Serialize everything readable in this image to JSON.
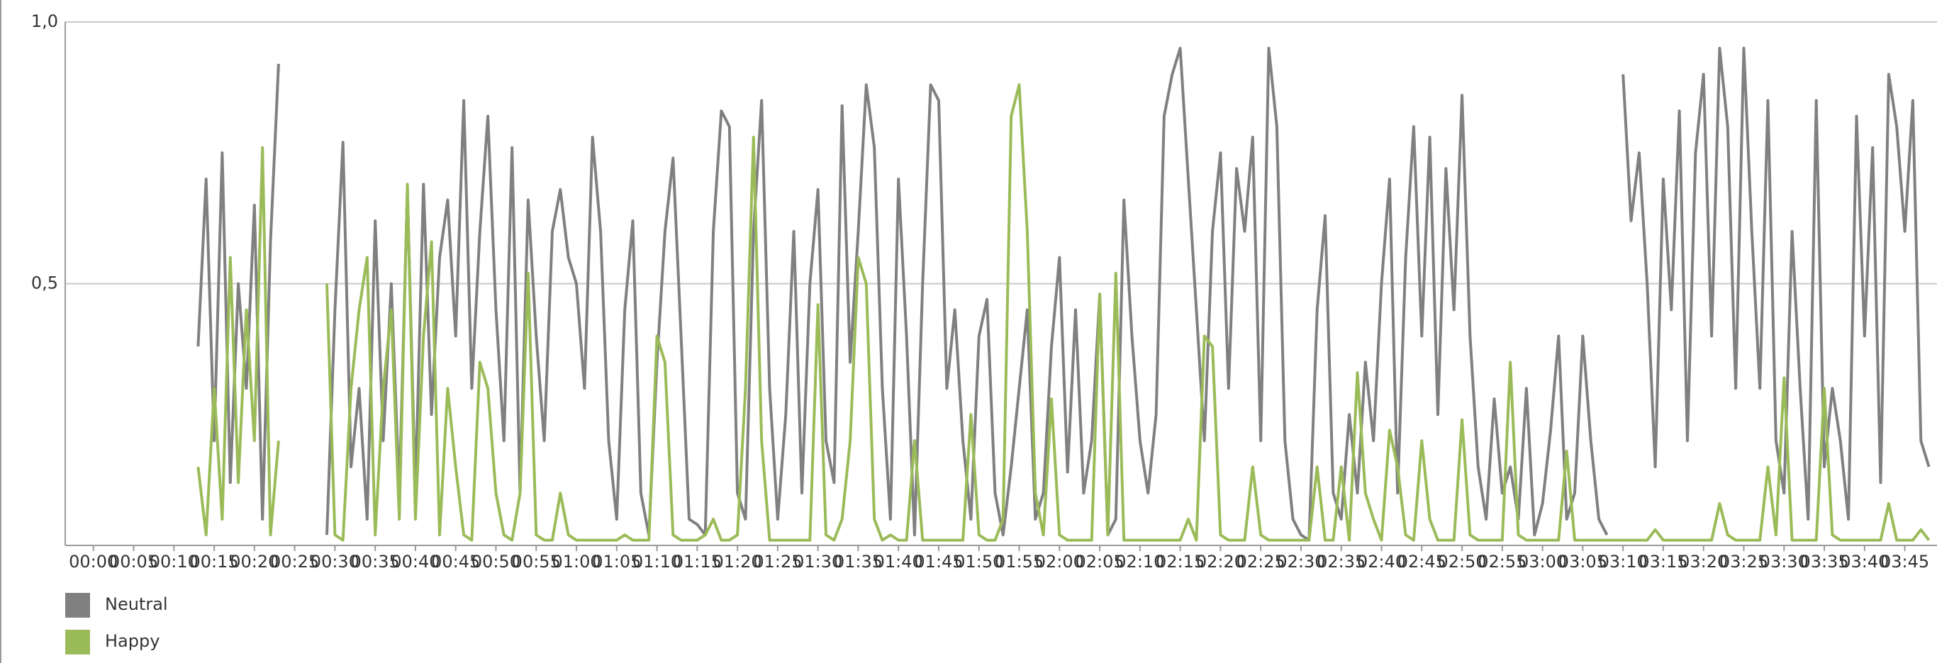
{
  "chart_data": {
    "type": "line",
    "x": [
      0,
      1,
      2,
      3,
      4,
      5,
      6,
      7,
      8,
      9,
      10,
      11,
      12,
      13,
      14,
      15,
      16,
      17,
      18,
      19,
      20,
      21,
      22,
      23,
      24,
      25,
      26,
      27,
      28,
      29,
      30,
      31,
      32,
      33,
      34,
      35,
      36,
      37,
      38,
      39,
      40,
      41,
      42,
      43,
      44,
      45,
      46,
      47,
      48,
      49,
      50,
      51,
      52,
      53,
      54,
      55,
      56,
      57,
      58,
      59,
      60,
      61,
      62,
      63,
      64,
      65,
      66,
      67,
      68,
      69,
      70,
      71,
      72,
      73,
      74,
      75,
      76,
      77,
      78,
      79,
      80,
      81,
      82,
      83,
      84,
      85,
      86,
      87,
      88,
      89,
      90,
      91,
      92,
      93,
      94,
      95,
      96,
      97,
      98,
      99,
      100,
      101,
      102,
      103,
      104,
      105,
      106,
      107,
      108,
      109,
      110,
      111,
      112,
      113,
      114,
      115,
      116,
      117,
      118,
      119,
      120,
      121,
      122,
      123,
      124,
      125,
      126,
      127,
      128,
      129,
      130,
      131,
      132,
      133,
      134,
      135,
      136,
      137,
      138,
      139,
      140,
      141,
      142,
      143,
      144,
      145,
      146,
      147,
      148,
      149,
      150,
      151,
      152,
      153,
      154,
      155,
      156,
      157,
      158,
      159,
      160,
      161,
      162,
      163,
      164,
      165,
      166,
      167,
      168,
      169,
      170,
      171,
      172,
      173,
      174,
      175,
      176,
      177,
      178,
      179,
      180,
      181,
      182,
      183,
      184,
      185,
      186,
      187,
      188,
      189,
      190,
      191,
      192,
      193,
      194,
      195,
      196,
      197,
      198,
      199,
      200,
      201,
      202,
      203,
      204,
      205,
      206,
      207,
      208,
      209,
      210,
      211,
      212,
      213,
      214,
      215,
      216,
      217,
      218,
      219,
      220,
      221,
      222,
      223,
      224,
      225,
      226,
      227,
      228
    ],
    "series": [
      {
        "name": "Neutral",
        "color": "#808080",
        "values": [
          null,
          null,
          null,
          null,
          null,
          null,
          null,
          null,
          null,
          null,
          null,
          null,
          null,
          0.38,
          0.7,
          0.2,
          0.75,
          0.12,
          0.5,
          0.3,
          0.65,
          0.05,
          0.58,
          0.92,
          null,
          null,
          null,
          null,
          null,
          0.02,
          0.45,
          0.77,
          0.15,
          0.3,
          0.05,
          0.62,
          0.2,
          0.5,
          0.1,
          0.68,
          0.1,
          0.69,
          0.25,
          0.55,
          0.66,
          0.4,
          0.85,
          0.3,
          0.6,
          0.82,
          0.45,
          0.2,
          0.76,
          0.1,
          0.66,
          0.4,
          0.2,
          0.6,
          0.68,
          0.55,
          0.5,
          0.3,
          0.78,
          0.6,
          0.2,
          0.05,
          0.45,
          0.62,
          0.1,
          0.02,
          0.35,
          0.6,
          0.74,
          0.4,
          0.05,
          0.04,
          0.02,
          0.6,
          0.83,
          0.8,
          0.1,
          0.05,
          0.6,
          0.85,
          0.3,
          0.05,
          0.25,
          0.6,
          0.1,
          0.5,
          0.68,
          0.2,
          0.12,
          0.84,
          0.35,
          0.6,
          0.88,
          0.76,
          0.3,
          0.05,
          0.7,
          0.4,
          0.02,
          0.5,
          0.88,
          0.85,
          0.3,
          0.45,
          0.2,
          0.05,
          0.4,
          0.47,
          0.1,
          0.02,
          0.15,
          0.3,
          0.45,
          0.05,
          0.1,
          0.38,
          0.55,
          0.14,
          0.45,
          0.1,
          0.2,
          0.48,
          0.02,
          0.05,
          0.66,
          0.4,
          0.2,
          0.1,
          0.25,
          0.82,
          0.9,
          0.95,
          0.7,
          0.45,
          0.2,
          0.6,
          0.75,
          0.3,
          0.72,
          0.6,
          0.78,
          0.2,
          0.95,
          0.8,
          0.2,
          0.05,
          0.02,
          0.01,
          0.45,
          0.63,
          0.1,
          0.05,
          0.25,
          0.1,
          0.35,
          0.2,
          0.5,
          0.7,
          0.1,
          0.55,
          0.8,
          0.4,
          0.78,
          0.25,
          0.72,
          0.45,
          0.86,
          0.4,
          0.15,
          0.05,
          0.28,
          0.1,
          0.15,
          0.05,
          0.3,
          0.02,
          0.08,
          0.22,
          0.4,
          0.05,
          0.1,
          0.4,
          0.2,
          0.05,
          0.02,
          null,
          0.9,
          0.62,
          0.75,
          0.5,
          0.15,
          0.7,
          0.45,
          0.83,
          0.2,
          0.75,
          0.9,
          0.4,
          0.95,
          0.8,
          0.3,
          0.95,
          0.6,
          0.3,
          0.85,
          0.2,
          0.1,
          0.6,
          0.3,
          0.05,
          0.85,
          0.15,
          0.3,
          0.2,
          0.05,
          0.82,
          0.4,
          0.76,
          0.12,
          0.9,
          0.8,
          0.6,
          0.85,
          0.2,
          0.15
        ]
      },
      {
        "name": "Happy",
        "color": "#9bbb59",
        "values": [
          null,
          null,
          null,
          null,
          null,
          null,
          null,
          null,
          null,
          null,
          null,
          null,
          null,
          0.15,
          0.02,
          0.3,
          0.05,
          0.55,
          0.12,
          0.45,
          0.2,
          0.76,
          0.02,
          0.2,
          null,
          null,
          null,
          null,
          null,
          0.5,
          0.02,
          0.01,
          0.3,
          0.45,
          0.55,
          0.02,
          0.3,
          0.45,
          0.05,
          0.69,
          0.05,
          0.4,
          0.58,
          0.02,
          0.3,
          0.15,
          0.02,
          0.01,
          0.35,
          0.3,
          0.1,
          0.02,
          0.01,
          0.1,
          0.52,
          0.02,
          0.01,
          0.01,
          0.1,
          0.02,
          0.01,
          0.01,
          0.01,
          0.01,
          0.01,
          0.01,
          0.02,
          0.01,
          0.01,
          0.01,
          0.4,
          0.35,
          0.02,
          0.01,
          0.01,
          0.01,
          0.02,
          0.05,
          0.01,
          0.01,
          0.02,
          0.3,
          0.78,
          0.2,
          0.01,
          0.01,
          0.01,
          0.01,
          0.01,
          0.01,
          0.46,
          0.02,
          0.01,
          0.05,
          0.2,
          0.55,
          0.5,
          0.05,
          0.01,
          0.02,
          0.01,
          0.01,
          0.2,
          0.01,
          0.01,
          0.01,
          0.01,
          0.01,
          0.01,
          0.25,
          0.02,
          0.01,
          0.01,
          0.05,
          0.82,
          0.88,
          0.6,
          0.1,
          0.02,
          0.28,
          0.02,
          0.01,
          0.01,
          0.01,
          0.01,
          0.48,
          0.02,
          0.52,
          0.01,
          0.01,
          0.01,
          0.01,
          0.01,
          0.01,
          0.01,
          0.01,
          0.05,
          0.01,
          0.4,
          0.38,
          0.02,
          0.01,
          0.01,
          0.01,
          0.15,
          0.02,
          0.01,
          0.01,
          0.01,
          0.01,
          0.01,
          0.01,
          0.15,
          0.01,
          0.01,
          0.15,
          0.01,
          0.33,
          0.1,
          0.05,
          0.01,
          0.22,
          0.15,
          0.02,
          0.01,
          0.2,
          0.05,
          0.01,
          0.01,
          0.01,
          0.24,
          0.02,
          0.01,
          0.01,
          0.01,
          0.01,
          0.35,
          0.02,
          0.01,
          0.01,
          0.01,
          0.01,
          0.01,
          0.18,
          0.01,
          0.01,
          0.01,
          0.01,
          0.01,
          0.01,
          0.01,
          0.01,
          0.01,
          0.01,
          0.03,
          0.01,
          0.01,
          0.01,
          0.01,
          0.01,
          0.01,
          0.01,
          0.08,
          0.02,
          0.01,
          0.01,
          0.01,
          0.01,
          0.15,
          0.02,
          0.32,
          0.01,
          0.01,
          0.01,
          0.01,
          0.3,
          0.02,
          0.01,
          0.01,
          0.01,
          0.01,
          0.01,
          0.01,
          0.08,
          0.01,
          0.01,
          0.01,
          0.03,
          0.01
        ]
      }
    ],
    "xlim": [
      -3.5,
      229
    ],
    "xticks": [
      {
        "value": 0,
        "label": "00:00"
      },
      {
        "value": 5,
        "label": "00:05"
      },
      {
        "value": 10,
        "label": "00:10"
      },
      {
        "value": 15,
        "label": "00:15"
      },
      {
        "value": 20,
        "label": "00:20"
      },
      {
        "value": 25,
        "label": "00:25"
      },
      {
        "value": 30,
        "label": "00:30"
      },
      {
        "value": 35,
        "label": "00:35"
      },
      {
        "value": 40,
        "label": "00:40"
      },
      {
        "value": 45,
        "label": "00:45"
      },
      {
        "value": 50,
        "label": "00:50"
      },
      {
        "value": 55,
        "label": "00:55"
      },
      {
        "value": 60,
        "label": "01:00"
      },
      {
        "value": 65,
        "label": "01:05"
      },
      {
        "value": 70,
        "label": "01:10"
      },
      {
        "value": 75,
        "label": "01:15"
      },
      {
        "value": 80,
        "label": "01:20"
      },
      {
        "value": 85,
        "label": "01:25"
      },
      {
        "value": 90,
        "label": "01:30"
      },
      {
        "value": 95,
        "label": "01:35"
      },
      {
        "value": 100,
        "label": "01:40"
      },
      {
        "value": 105,
        "label": "01:45"
      },
      {
        "value": 110,
        "label": "01:50"
      },
      {
        "value": 115,
        "label": "01:55"
      },
      {
        "value": 120,
        "label": "02:00"
      },
      {
        "value": 125,
        "label": "02:05"
      },
      {
        "value": 130,
        "label": "02:10"
      },
      {
        "value": 135,
        "label": "02:15"
      },
      {
        "value": 140,
        "label": "02:20"
      },
      {
        "value": 145,
        "label": "02:25"
      },
      {
        "value": 150,
        "label": "02:30"
      },
      {
        "value": 155,
        "label": "02:35"
      },
      {
        "value": 160,
        "label": "02:40"
      },
      {
        "value": 165,
        "label": "02:45"
      },
      {
        "value": 170,
        "label": "02:50"
      },
      {
        "value": 175,
        "label": "02:55"
      },
      {
        "value": 180,
        "label": "03:00"
      },
      {
        "value": 185,
        "label": "03:05"
      },
      {
        "value": 190,
        "label": "03:10"
      },
      {
        "value": 195,
        "label": "03:15"
      },
      {
        "value": 200,
        "label": "03:20"
      },
      {
        "value": 205,
        "label": "03:25"
      },
      {
        "value": 210,
        "label": "03:30"
      },
      {
        "value": 215,
        "label": "03:35"
      },
      {
        "value": 220,
        "label": "03:40"
      },
      {
        "value": 225,
        "label": "03:45"
      }
    ],
    "ylim": [
      0,
      1
    ],
    "yticks": [
      {
        "value": 0.5,
        "label": "0,5"
      },
      {
        "value": 1,
        "label": "1,0"
      }
    ],
    "grid": true,
    "legend": "bottom-left"
  }
}
